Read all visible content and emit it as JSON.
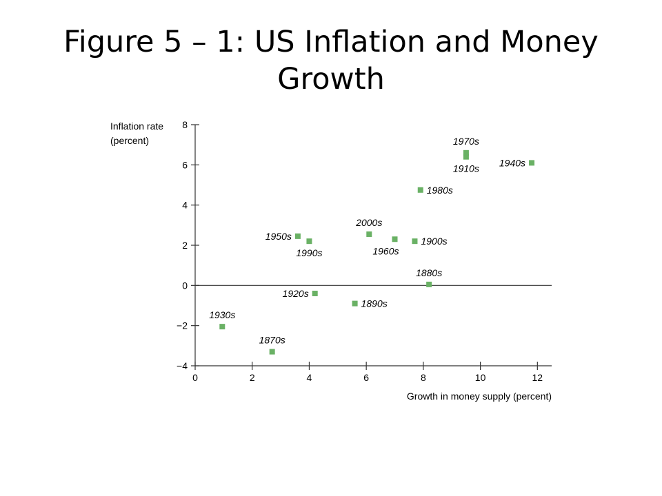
{
  "slide": {
    "title": "Figure 5 – 1: US Inflation and Money Growth"
  },
  "chart_data": {
    "type": "scatter",
    "xlabel": "Growth in money supply (percent)",
    "ylabel_lines": [
      "Inflation rate",
      "(percent)"
    ],
    "xlim": [
      0,
      12.5
    ],
    "ylim": [
      -4,
      8
    ],
    "xticks": [
      0,
      2,
      4,
      6,
      8,
      10,
      12
    ],
    "yticks": [
      -4,
      -2,
      0,
      2,
      4,
      6,
      8
    ],
    "ytick_labels": [
      "−4",
      "−2",
      "0",
      "2",
      "4",
      "6",
      "8"
    ],
    "zero_line": true,
    "grid": false,
    "marker_color": "#6ab165",
    "points": [
      {
        "label": "1870s",
        "x": 2.7,
        "y": -3.3,
        "label_pos": "above"
      },
      {
        "label": "1880s",
        "x": 8.2,
        "y": 0.05,
        "label_pos": "above"
      },
      {
        "label": "1890s",
        "x": 5.6,
        "y": -0.9,
        "label_pos": "right"
      },
      {
        "label": "1900s",
        "x": 7.7,
        "y": 2.2,
        "label_pos": "right"
      },
      {
        "label": "1910s",
        "x": 9.5,
        "y": 6.4,
        "label_pos": "below"
      },
      {
        "label": "1920s",
        "x": 4.2,
        "y": -0.4,
        "label_pos": "left"
      },
      {
        "label": "1930s",
        "x": 0.95,
        "y": -2.05,
        "label_pos": "above"
      },
      {
        "label": "1940s",
        "x": 11.8,
        "y": 6.1,
        "label_pos": "left"
      },
      {
        "label": "1950s",
        "x": 3.6,
        "y": 2.45,
        "label_pos": "left"
      },
      {
        "label": "1960s",
        "x": 7.0,
        "y": 2.3,
        "label_pos": "below-left"
      },
      {
        "label": "1970s",
        "x": 9.5,
        "y": 6.6,
        "label_pos": "above"
      },
      {
        "label": "1980s",
        "x": 7.9,
        "y": 4.75,
        "label_pos": "right"
      },
      {
        "label": "1990s",
        "x": 4.0,
        "y": 2.2,
        "label_pos": "below"
      },
      {
        "label": "2000s",
        "x": 6.1,
        "y": 2.55,
        "label_pos": "above"
      }
    ]
  }
}
